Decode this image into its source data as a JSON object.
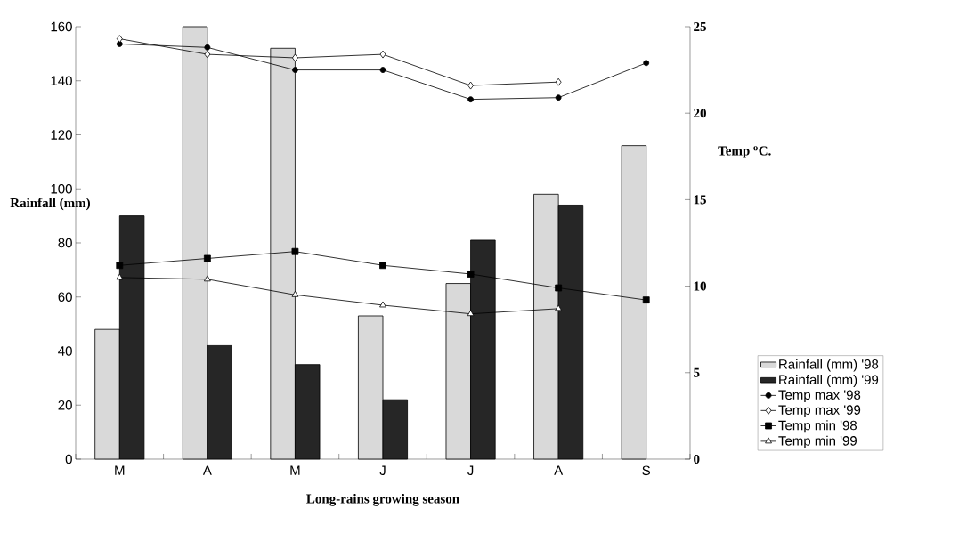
{
  "chart_data": {
    "type": "bar",
    "xlabel": "Long-rains growing season",
    "ylabel": "Rainfall (mm)",
    "y2label": "Temp $^{o}$C.",
    "categories": [
      "M",
      "A",
      "M",
      "J",
      "J",
      "A",
      "S"
    ],
    "ylim": [
      0,
      160
    ],
    "yticks": [
      0,
      20,
      40,
      60,
      80,
      100,
      120,
      140,
      160
    ],
    "y2lim": [
      0,
      25
    ],
    "y2ticks": [
      0,
      5,
      10,
      15,
      20,
      25
    ],
    "legend": "right",
    "grid": false,
    "series": [
      {
        "name": "Rainfall (mm) '98",
        "color": "#d9d9d9",
        "values": [
          48,
          160,
          152,
          53,
          65,
          98,
          116
        ]
      },
      {
        "name": "Rainfall (mm) '99",
        "color": "#262626",
        "values": [
          90,
          42,
          35,
          22,
          81,
          94,
          null
        ]
      },
      {
        "name": "Temp max '98",
        "type": "line",
        "axis": "y2",
        "marker": "circle",
        "color": "#000000",
        "values": [
          24.0,
          23.8,
          22.5,
          22.5,
          20.8,
          20.9,
          22.9
        ]
      },
      {
        "name": "Temp max '99",
        "type": "line",
        "axis": "y2",
        "marker": "diamond",
        "color": "#000000",
        "values": [
          24.3,
          23.4,
          23.2,
          23.4,
          21.6,
          21.8,
          null
        ]
      },
      {
        "name": "Temp min '98",
        "type": "line",
        "axis": "y2",
        "marker": "square",
        "color": "#000000",
        "values": [
          11.2,
          11.6,
          12.0,
          11.2,
          10.7,
          9.9,
          9.2
        ]
      },
      {
        "name": "Temp min '99",
        "type": "line",
        "axis": "y2",
        "marker": "triangle",
        "color": "#000000",
        "values": [
          10.5,
          10.4,
          9.5,
          8.9,
          8.4,
          8.7,
          null
        ]
      }
    ]
  }
}
